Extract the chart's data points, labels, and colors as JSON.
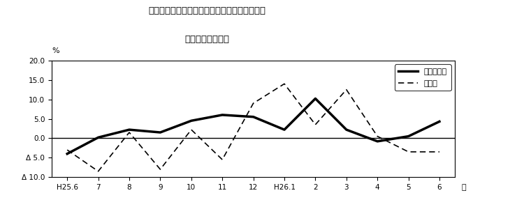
{
  "title_line1": "第２図　所定外労働時間　対前年同月比の推移",
  "title_line2": "（規横５人以上）",
  "xlabel": "月",
  "ylabel": "%",
  "x_labels": [
    "H25.6",
    "7",
    "8",
    "9",
    "10",
    "11",
    "12",
    "H26.1",
    "2",
    "3",
    "4",
    "5",
    "6"
  ],
  "ylim": [
    -10.0,
    20.0
  ],
  "yticks": [
    -10.0,
    -5.0,
    0.0,
    5.0,
    10.0,
    15.0,
    20.0
  ],
  "ytick_labels": [
    "Δ 10.0",
    "Δ 5.0",
    "0.0",
    "5.0",
    "10.0",
    "15.0",
    "20.0"
  ],
  "series_total": [
    -4.0,
    0.2,
    2.2,
    1.5,
    4.5,
    6.0,
    5.5,
    2.2,
    10.2,
    2.2,
    -0.8,
    0.5,
    4.3
  ],
  "series_mfg": [
    -3.0,
    -8.5,
    1.5,
    -8.0,
    2.2,
    -5.5,
    9.0,
    14.0,
    3.5,
    12.5,
    0.5,
    -3.5,
    -3.5
  ],
  "legend_total": "調査産業計",
  "legend_mfg": "製造業",
  "line_color": "#000000",
  "bg_color": "#ffffff",
  "plot_bg_color": "#ffffff"
}
